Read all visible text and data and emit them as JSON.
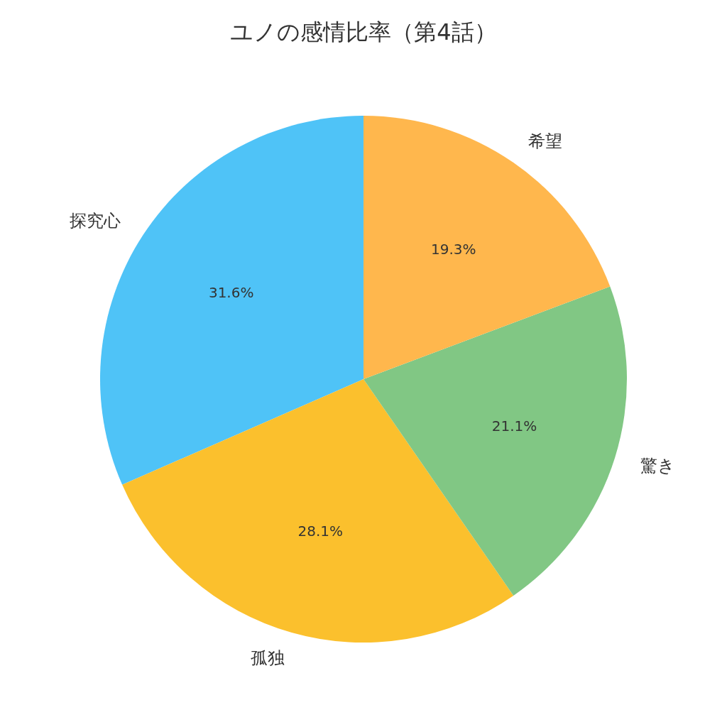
{
  "chart_data": {
    "type": "pie",
    "title": "ユノの感情比率（第4話）",
    "categories": [
      "探究心",
      "孤独",
      "驚き",
      "希望"
    ],
    "values": [
      31.6,
      28.1,
      21.1,
      19.3
    ],
    "value_labels": [
      "31.6%",
      "28.1%",
      "21.1%",
      "19.3%"
    ],
    "colors": [
      "#4fc3f7",
      "#fbc02d",
      "#81c784",
      "#ffb74d"
    ],
    "legend": false
  }
}
